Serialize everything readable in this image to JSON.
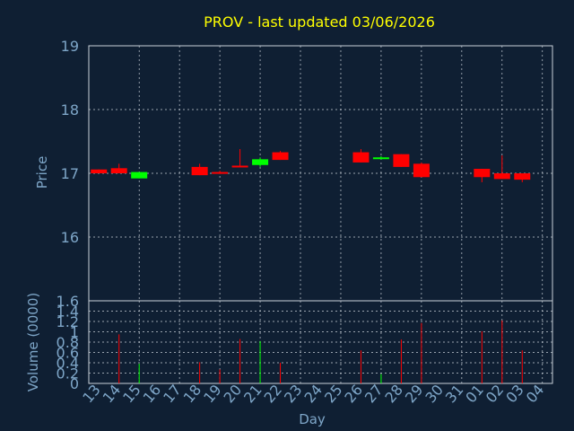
{
  "title": "PROV - last updated 03/06/2026",
  "colors": {
    "background": "#0f1f33",
    "axis_text": "#7ea6c8",
    "title": "#ffff00",
    "grid": "#c8d0d8",
    "up": "#00ff00",
    "down": "#ff0000"
  },
  "chart_data": [
    {
      "type": "candlestick",
      "name": "price",
      "ylabel": "Price",
      "ylim": [
        15.0,
        19.0
      ],
      "yticks": [
        16,
        17,
        18,
        19
      ],
      "grid": true,
      "categories": [
        "13",
        "14",
        "15",
        "16",
        "17",
        "18",
        "19",
        "20",
        "21",
        "22",
        "23",
        "24",
        "25",
        "26",
        "27",
        "28",
        "29",
        "30",
        "31",
        "01",
        "02",
        "03",
        "04"
      ],
      "candles": [
        {
          "day": "13",
          "open": 17.06,
          "high": 17.06,
          "low": 17.0,
          "close": 17.0
        },
        {
          "day": "14",
          "open": 17.08,
          "high": 17.15,
          "low": 17.0,
          "close": 17.0
        },
        {
          "day": "15",
          "open": 16.92,
          "high": 17.02,
          "low": 16.92,
          "close": 17.02
        },
        {
          "day": "18",
          "open": 17.1,
          "high": 17.15,
          "low": 16.97,
          "close": 16.97
        },
        {
          "day": "19",
          "open": 17.02,
          "high": 17.04,
          "low": 16.99,
          "close": 17.0
        },
        {
          "day": "20",
          "open": 17.12,
          "high": 17.38,
          "low": 17.1,
          "close": 17.1
        },
        {
          "day": "21",
          "open": 17.13,
          "high": 17.25,
          "low": 17.1,
          "close": 17.22
        },
        {
          "day": "22",
          "open": 17.33,
          "high": 17.35,
          "low": 17.21,
          "close": 17.21
        },
        {
          "day": "26",
          "open": 17.33,
          "high": 17.38,
          "low": 17.17,
          "close": 17.17
        },
        {
          "day": "27",
          "open": 17.23,
          "high": 17.27,
          "low": 17.22,
          "close": 17.25
        },
        {
          "day": "28",
          "open": 17.3,
          "high": 17.3,
          "low": 17.1,
          "close": 17.1
        },
        {
          "day": "29",
          "open": 17.15,
          "high": 17.17,
          "low": 16.94,
          "close": 16.94
        },
        {
          "day": "01",
          "open": 17.07,
          "high": 17.07,
          "low": 16.86,
          "close": 16.94
        },
        {
          "day": "02",
          "open": 17.0,
          "high": 17.28,
          "low": 16.91,
          "close": 16.91
        },
        {
          "day": "03",
          "open": 17.0,
          "high": 17.0,
          "low": 16.86,
          "close": 16.9
        }
      ]
    },
    {
      "type": "bar",
      "name": "volume",
      "ylabel": "Volume (0000)",
      "xlabel": "Day",
      "ylim": [
        0,
        1.6
      ],
      "yticks": [
        0,
        0.2,
        0.4,
        0.6,
        0.8,
        1,
        1.2,
        1.4,
        1.6
      ],
      "ytick_labels": [
        "0",
        "0.2",
        "0.4",
        "0.6",
        "0.8",
        "1",
        "1.2",
        "1.4",
        "1.6"
      ],
      "grid": true,
      "categories": [
        "13",
        "14",
        "15",
        "16",
        "17",
        "18",
        "19",
        "20",
        "21",
        "22",
        "23",
        "24",
        "25",
        "26",
        "27",
        "28",
        "29",
        "30",
        "31",
        "01",
        "02",
        "03",
        "04"
      ],
      "bars": [
        {
          "day": "14",
          "value": 0.95,
          "color": "down"
        },
        {
          "day": "15",
          "value": 0.38,
          "color": "up"
        },
        {
          "day": "18",
          "value": 0.41,
          "color": "down"
        },
        {
          "day": "19",
          "value": 0.27,
          "color": "down"
        },
        {
          "day": "20",
          "value": 0.86,
          "color": "down"
        },
        {
          "day": "21",
          "value": 0.82,
          "color": "up"
        },
        {
          "day": "22",
          "value": 0.4,
          "color": "down"
        },
        {
          "day": "26",
          "value": 0.64,
          "color": "down"
        },
        {
          "day": "27",
          "value": 0.18,
          "color": "up"
        },
        {
          "day": "28",
          "value": 0.85,
          "color": "down"
        },
        {
          "day": "29",
          "value": 1.17,
          "color": "down"
        },
        {
          "day": "01",
          "value": 1.01,
          "color": "down"
        },
        {
          "day": "02",
          "value": 1.22,
          "color": "down"
        },
        {
          "day": "03",
          "value": 0.64,
          "color": "down"
        }
      ]
    }
  ]
}
